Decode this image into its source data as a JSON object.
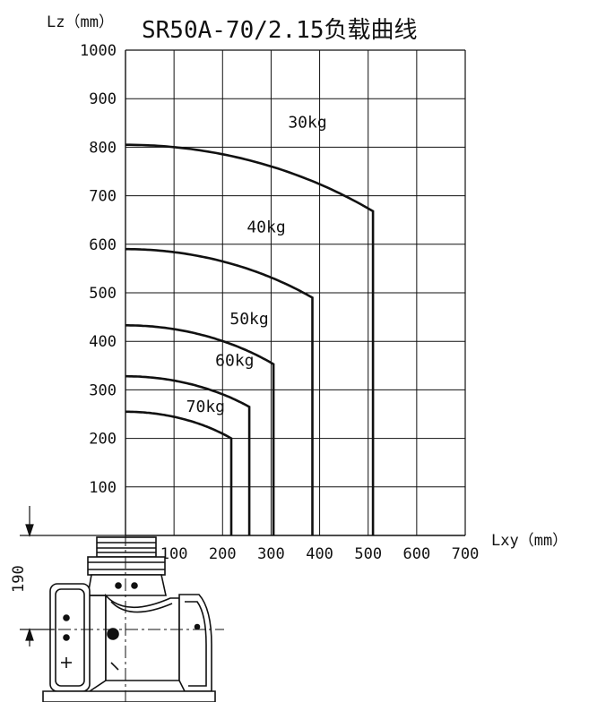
{
  "chart_data": {
    "type": "line",
    "title": "SR50A-70/2.15负载曲线",
    "xlabel": "Lxy（mm）",
    "ylabel": "Lz（mm）",
    "xlim": [
      0,
      700
    ],
    "ylim": [
      0,
      1000
    ],
    "xticks": [
      100,
      200,
      300,
      400,
      500,
      600,
      700
    ],
    "yticks": [
      100,
      200,
      300,
      400,
      500,
      600,
      700,
      800,
      900,
      1000
    ],
    "grid": true,
    "series": [
      {
        "name": "30kg",
        "label": "30kg",
        "z0": 805,
        "x_end": 510,
        "z_end": 668,
        "label_x": 375,
        "label_z": 840
      },
      {
        "name": "40kg",
        "label": "40kg",
        "z0": 590,
        "x_end": 385,
        "z_end": 490,
        "label_x": 290,
        "label_z": 625
      },
      {
        "name": "50kg",
        "label": "50kg",
        "z0": 433,
        "x_end": 305,
        "z_end": 353,
        "label_x": 255,
        "label_z": 435
      },
      {
        "name": "60kg",
        "label": "60kg",
        "z0": 328,
        "x_end": 255,
        "z_end": 265,
        "label_x": 225,
        "label_z": 350
      },
      {
        "name": "70kg",
        "label": "70kg",
        "z0": 255,
        "x_end": 218,
        "z_end": 200,
        "label_x": 165,
        "label_z": 255
      }
    ]
  },
  "dimension_label": "190",
  "colors": {
    "line": "#111111",
    "grid": "#111111",
    "background": "#ffffff"
  }
}
